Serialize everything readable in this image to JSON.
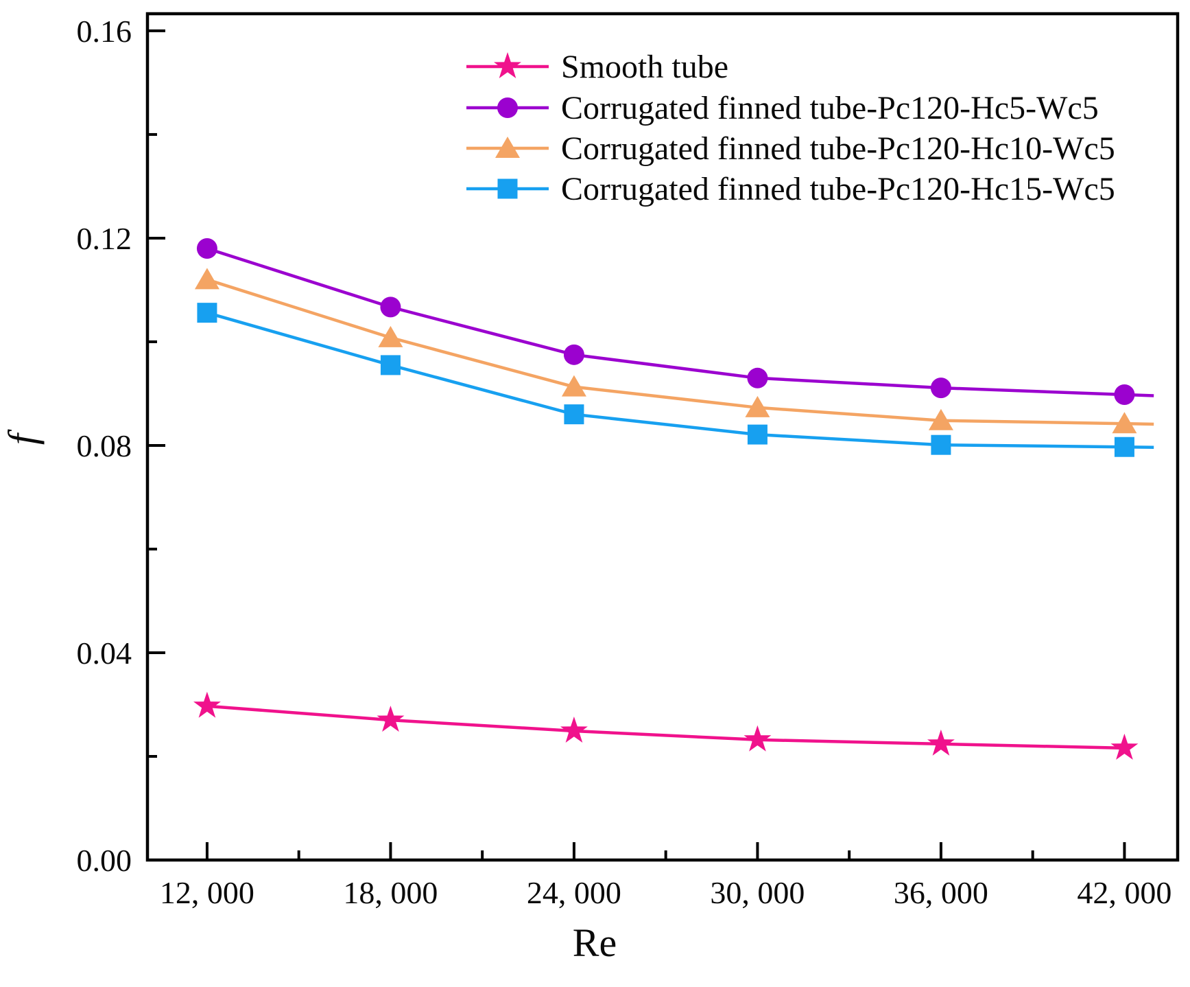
{
  "chart_data": {
    "type": "line",
    "title": "",
    "xlabel": "Re",
    "ylabel": "f",
    "grid": false,
    "legend_position": "inside-top-center",
    "xlim": [
      10050,
      43740
    ],
    "ylim": [
      0,
      0.1633
    ],
    "x": [
      12000,
      18000,
      24000,
      30000,
      36000,
      42000
    ],
    "x_tick_labels": [
      "12, 000",
      "18, 000",
      "24, 000",
      "30, 000",
      "36, 000",
      "42, 000"
    ],
    "x_minor_ticks": [
      15000,
      21000,
      27000,
      33000,
      39000
    ],
    "y_ticks": [
      0.0,
      0.04,
      0.08,
      0.12,
      0.16
    ],
    "y_tick_labels": [
      "0.00",
      "0.04",
      "0.08",
      "0.12",
      "0.16"
    ],
    "y_minor_ticks": [
      0.02,
      0.06,
      0.1,
      0.14
    ],
    "axis_color": "#000000",
    "series": [
      {
        "name": "Smooth tube",
        "marker": "star",
        "color": "#F0128C",
        "values": [
          0.0297,
          0.027,
          0.0249,
          0.0232,
          0.0224,
          0.0216
        ],
        "trail": false
      },
      {
        "name": "Corrugated finned tube-Pc120-Hc5-Wc5",
        "marker": "circle",
        "color": "#9B02CF",
        "values": [
          0.118,
          0.1067,
          0.0975,
          0.093,
          0.0911,
          0.0898
        ],
        "trail": true
      },
      {
        "name": "Corrugated finned tube-Pc120-Hc10-Wc5",
        "marker": "triangle",
        "color": "#F4A463",
        "values": [
          0.112,
          0.1008,
          0.0913,
          0.0873,
          0.0848,
          0.0842
        ],
        "trail": true
      },
      {
        "name": "Corrugated finned tube-Pc120-Hc15-Wc5",
        "marker": "square",
        "color": "#17A0F0",
        "values": [
          0.1056,
          0.0955,
          0.086,
          0.0821,
          0.0801,
          0.0797
        ],
        "trail": true
      }
    ],
    "trail_re": 42960
  }
}
